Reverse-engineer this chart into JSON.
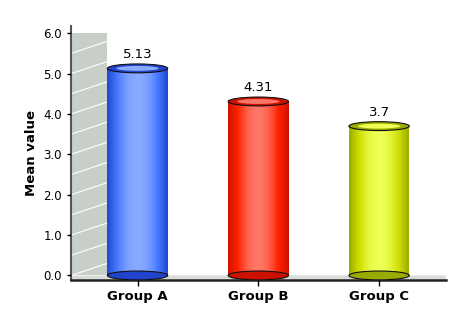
{
  "categories": [
    "Group A",
    "Group B",
    "Group C"
  ],
  "values": [
    5.13,
    4.31,
    3.7
  ],
  "labels": [
    "5.13",
    "4.31",
    "3.7"
  ],
  "bar_colors_main": [
    "#4477ff",
    "#ff2200",
    "#ccdd00"
  ],
  "bar_colors_light": [
    "#88aaff",
    "#ff7766",
    "#eeff55"
  ],
  "bar_colors_dark": [
    "#2244cc",
    "#cc1100",
    "#99aa00"
  ],
  "ylabel": "Mean value",
  "ylim": [
    0.0,
    6.0
  ],
  "yticks": [
    0.0,
    1.0,
    2.0,
    3.0,
    4.0,
    5.0,
    6.0
  ],
  "label_fontsize": 9,
  "tick_fontsize": 8.5,
  "ylabel_fontsize": 9
}
